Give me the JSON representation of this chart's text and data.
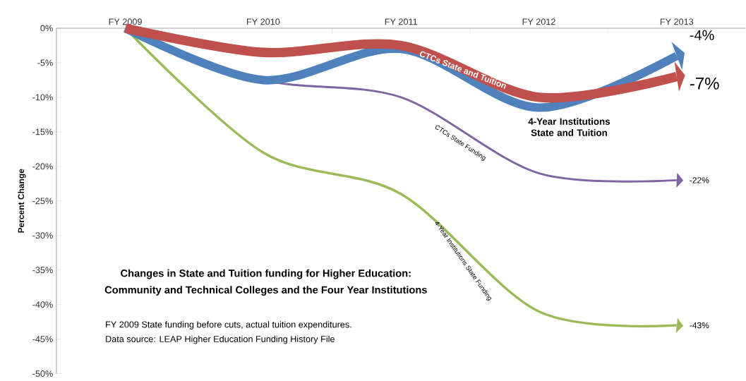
{
  "chart_data": {
    "type": "line",
    "title": "Changes in State and Tuition funding for Higher Education:",
    "subtitle": "Community and Technical Colleges and the Four Year Institutions",
    "ylabel": "Percent Change",
    "categories": [
      "FY 2009",
      "FY 2010",
      "FY 2011",
      "FY 2012",
      "FY 2013"
    ],
    "series": [
      {
        "name": "CTCs State Funding",
        "color": "#8064a2",
        "values": [
          0,
          -7.5,
          -10,
          -21,
          -22
        ],
        "value_labels": [
          null,
          null,
          null,
          null,
          "-22%"
        ]
      },
      {
        "name": "4-Year Institutions State Funding",
        "color": "#9bbb59",
        "values": [
          0,
          -18,
          -24,
          -41,
          -43
        ],
        "value_labels": [
          null,
          null,
          null,
          null,
          "-43%"
        ]
      },
      {
        "name": "4-Year Institutions State and Tuition",
        "color": "#4f81bd",
        "values": [
          0,
          -7.5,
          -3,
          -11.5,
          -4
        ],
        "value_labels": [
          null,
          null,
          null,
          null,
          "-4%"
        ]
      },
      {
        "name": "CTCs State and Tuition",
        "color": "#c0504d",
        "values": [
          0,
          -3.5,
          -2.5,
          -10,
          -7
        ],
        "value_labels": [
          null,
          null,
          null,
          null,
          "-7%"
        ]
      }
    ],
    "ylim": [
      -50,
      0
    ],
    "yticks": [
      {
        "value": 0,
        "label": "0%"
      },
      {
        "value": -5,
        "label": "-5%"
      },
      {
        "value": -10,
        "label": "-10%"
      },
      {
        "value": -15,
        "label": "-15%"
      },
      {
        "value": -20,
        "label": "-20%"
      },
      {
        "value": -25,
        "label": "-25%"
      },
      {
        "value": -30,
        "label": "-30%"
      },
      {
        "value": -35,
        "label": "-35%"
      },
      {
        "value": -40,
        "label": "-40%"
      },
      {
        "value": -45,
        "label": "-45%"
      },
      {
        "value": -50,
        "label": "-50%"
      }
    ],
    "grid": false,
    "legend": false,
    "marker": "none",
    "line_style": "solid",
    "annotations": [
      "FY 2009 State funding before cuts, actual tuition expenditures.",
      "Data source:  LEAP Higher Education Funding History File"
    ]
  }
}
